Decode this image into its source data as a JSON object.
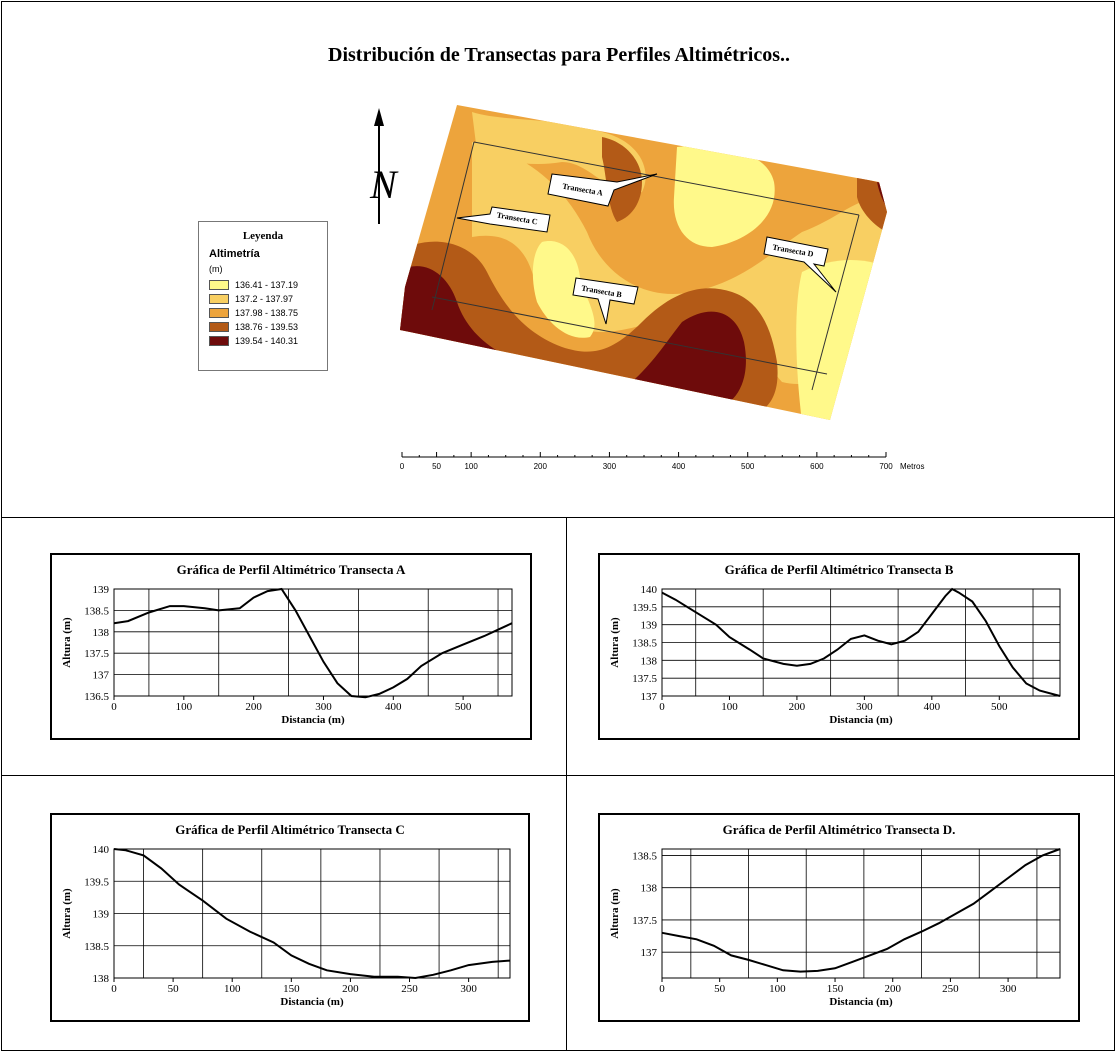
{
  "map": {
    "title": "Distribución de Transectas para Perfiles Altimétricos..",
    "north_label": "N",
    "legend": {
      "title": "Leyenda",
      "subtitle": "Altimetría",
      "unit": "(m)",
      "classes": [
        {
          "label": "136.41 - 137.19",
          "color": "#FFF98A"
        },
        {
          "label": "137.2 - 137.97",
          "color": "#F8CF62"
        },
        {
          "label": "137.98 - 138.75",
          "color": "#EDA43C"
        },
        {
          "label": "138.76 - 139.53",
          "color": "#B35A17"
        },
        {
          "label": "139.54 - 140.31",
          "color": "#6E0B0B"
        }
      ]
    },
    "transect_labels": [
      "Transecta A",
      "Transecta B",
      "Transecta C",
      "Transecta D"
    ],
    "scale_ticks": [
      "0",
      "50",
      "100",
      "200",
      "300",
      "400",
      "500",
      "600",
      "700"
    ],
    "scale_unit": "Metros"
  },
  "chart_data": [
    {
      "type": "line",
      "title": "Gráfica de Perfil Altimétrico Transecta A",
      "xlabel": "Distancia (m)",
      "ylabel": "Altura (m)",
      "xlim": [
        0,
        570
      ],
      "ylim": [
        136.5,
        139
      ],
      "xticks": [
        0,
        100,
        200,
        300,
        400,
        500
      ],
      "yticks": [
        136.5,
        137,
        137.5,
        138,
        138.5,
        139
      ],
      "xgrid": [
        50,
        150,
        250,
        350,
        450,
        550
      ],
      "grid": true,
      "series": [
        {
          "x": [
            0,
            20,
            50,
            80,
            100,
            130,
            150,
            180,
            200,
            220,
            240,
            260,
            280,
            300,
            320,
            340,
            360,
            380,
            400,
            420,
            440,
            470,
            500,
            530,
            550,
            570
          ],
          "y": [
            138.2,
            138.25,
            138.45,
            138.6,
            138.6,
            138.55,
            138.5,
            138.55,
            138.8,
            138.95,
            139.0,
            138.5,
            137.9,
            137.3,
            136.8,
            136.5,
            136.47,
            136.55,
            136.7,
            136.9,
            137.2,
            137.5,
            137.7,
            137.9,
            138.05,
            138.2
          ]
        }
      ]
    },
    {
      "type": "line",
      "title": "Gráfica de Perfil Altimétrico Transecta B",
      "xlabel": "Distancia (m)",
      "ylabel": "Altura (m)",
      "xlim": [
        0,
        590
      ],
      "ylim": [
        137,
        140
      ],
      "xticks": [
        0,
        100,
        200,
        300,
        400,
        500
      ],
      "yticks": [
        137,
        137.5,
        138,
        138.5,
        139,
        139.5,
        140
      ],
      "xgrid": [
        50,
        150,
        250,
        350,
        450,
        550
      ],
      "grid": true,
      "series": [
        {
          "x": [
            0,
            20,
            50,
            80,
            100,
            130,
            150,
            180,
            200,
            220,
            240,
            260,
            280,
            300,
            320,
            340,
            360,
            380,
            400,
            420,
            430,
            440,
            460,
            480,
            500,
            520,
            540,
            560,
            590
          ],
          "y": [
            139.9,
            139.7,
            139.35,
            139.0,
            138.65,
            138.3,
            138.05,
            137.9,
            137.85,
            137.9,
            138.05,
            138.3,
            138.6,
            138.7,
            138.55,
            138.45,
            138.55,
            138.8,
            139.3,
            139.8,
            140.0,
            139.9,
            139.65,
            139.1,
            138.4,
            137.8,
            137.35,
            137.15,
            137.0
          ]
        }
      ]
    },
    {
      "type": "line",
      "title": "Gráfica de Perfil Altimétrico Transecta C",
      "xlabel": "Distancia (m)",
      "ylabel": "Altura (m)",
      "xlim": [
        0,
        335
      ],
      "ylim": [
        138,
        140
      ],
      "xticks": [
        0,
        50,
        100,
        150,
        200,
        250,
        300
      ],
      "yticks": [
        138,
        138.5,
        139,
        139.5,
        140
      ],
      "xgrid": [
        25,
        75,
        125,
        175,
        225,
        275,
        325
      ],
      "grid": true,
      "series": [
        {
          "x": [
            0,
            10,
            25,
            40,
            55,
            75,
            95,
            115,
            135,
            150,
            165,
            180,
            200,
            220,
            240,
            255,
            270,
            285,
            300,
            320,
            335
          ],
          "y": [
            140.0,
            139.98,
            139.9,
            139.7,
            139.45,
            139.2,
            138.92,
            138.72,
            138.55,
            138.35,
            138.22,
            138.12,
            138.06,
            138.02,
            138.02,
            138.0,
            138.05,
            138.12,
            138.2,
            138.25,
            138.27
          ]
        }
      ]
    },
    {
      "type": "line",
      "title": "Gráfica de Perfil Altimétrico Transecta D.",
      "xlabel": "Distancia (m)",
      "ylabel": "Altura (m)",
      "xlim": [
        0,
        345
      ],
      "ylim": [
        136.6,
        138.6
      ],
      "xticks": [
        0,
        50,
        100,
        150,
        200,
        250,
        300
      ],
      "yticks": [
        137,
        137.5,
        138,
        138.5
      ],
      "xgrid": [
        25,
        75,
        125,
        175,
        225,
        275,
        325
      ],
      "grid": true,
      "series": [
        {
          "x": [
            0,
            15,
            30,
            45,
            60,
            75,
            90,
            105,
            120,
            135,
            150,
            165,
            180,
            195,
            210,
            225,
            240,
            255,
            270,
            285,
            300,
            315,
            330,
            345
          ],
          "y": [
            137.3,
            137.25,
            137.2,
            137.1,
            136.95,
            136.88,
            136.8,
            136.72,
            136.7,
            136.71,
            136.75,
            136.85,
            136.95,
            137.05,
            137.2,
            137.32,
            137.45,
            137.6,
            137.75,
            137.95,
            138.15,
            138.35,
            138.5,
            138.6
          ]
        }
      ]
    }
  ]
}
